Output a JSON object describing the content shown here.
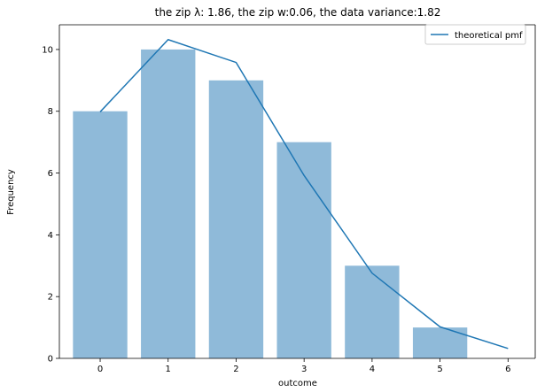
{
  "chart_data": {
    "type": "bar",
    "title": "the zip λ: 1.86, the zip w:0.06, the data variance:1.82",
    "xlabel": "outcome",
    "ylabel": "Frequency",
    "xlim": [
      -0.6,
      6.4
    ],
    "ylim": [
      0,
      10.8
    ],
    "xticks": [
      0,
      1,
      2,
      3,
      4,
      5,
      6
    ],
    "yticks": [
      0,
      2,
      4,
      6,
      8,
      10
    ],
    "grid": false,
    "legend_position": "top-right",
    "bars": {
      "x": [
        0,
        1,
        2,
        3,
        4,
        5
      ],
      "values": [
        8,
        10,
        9,
        7,
        3,
        1
      ],
      "color": "#8fbad9"
    },
    "series": [
      {
        "name": "theoretical pmf",
        "type": "line",
        "color": "#1f77b4",
        "x": [
          0,
          1,
          2,
          3,
          4,
          5,
          6
        ],
        "values": [
          7.98,
          10.32,
          9.58,
          5.92,
          2.76,
          1.02,
          0.32
        ]
      }
    ]
  }
}
